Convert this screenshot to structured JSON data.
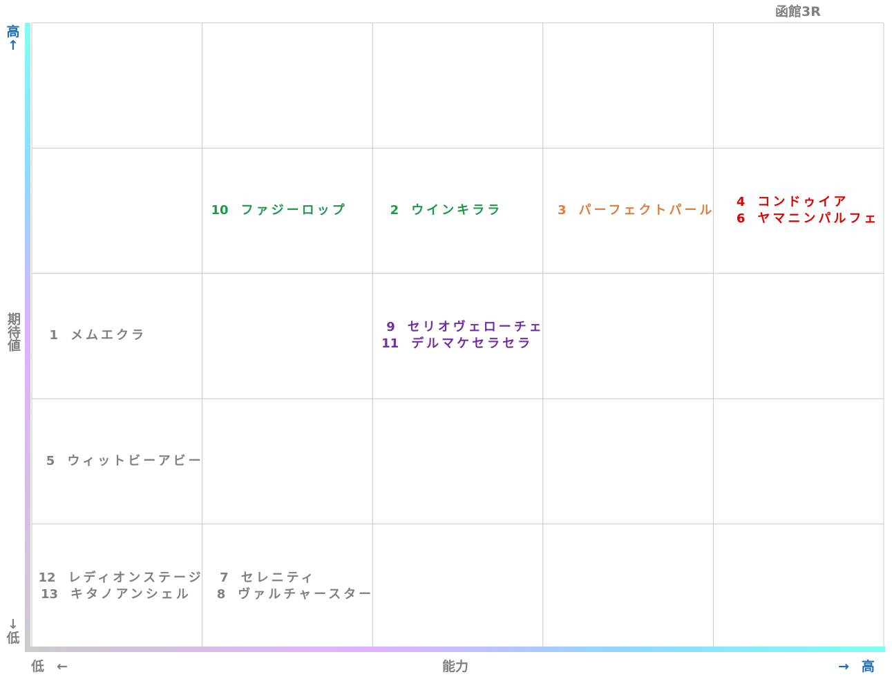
{
  "title": "函館3R",
  "y_axis": {
    "high": "高",
    "high_arrow": "↑",
    "label": "期待値",
    "low_arrow": "↓",
    "low": "低"
  },
  "x_axis": {
    "low": "低",
    "low_arrow": "←",
    "label": "能力",
    "high_arrow": "→",
    "high": "高"
  },
  "grid": [
    [
      [],
      [],
      [],
      [],
      []
    ],
    [
      [],
      [
        {
          "number": 10,
          "name": "ファジーロップ",
          "color": "#1a9a48"
        }
      ],
      [
        {
          "number": 2,
          "name": "ウインキララ",
          "color": "#1a9a48"
        }
      ],
      [
        {
          "number": 3,
          "name": "パーフェクトパール",
          "color": "#e07b39"
        }
      ],
      [
        {
          "number": 4,
          "name": "コンドゥイア",
          "color": "#e00000"
        },
        {
          "number": 6,
          "name": "ヤマニンパルフェ",
          "color": "#e00000"
        }
      ]
    ],
    [
      [
        {
          "number": 1,
          "name": "メムエクラ",
          "color": "#808080"
        }
      ],
      [],
      [
        {
          "number": 9,
          "name": "セリオヴェローチェ",
          "color": "#7030a0"
        },
        {
          "number": 11,
          "name": "デルマケセラセラ",
          "color": "#7030a0"
        }
      ],
      [],
      []
    ],
    [
      [
        {
          "number": 5,
          "name": "ウィットビーアビー",
          "color": "#808080"
        }
      ],
      [],
      [],
      [],
      []
    ],
    [
      [
        {
          "number": 12,
          "name": "レディオンステージ",
          "color": "#808080"
        },
        {
          "number": 13,
          "name": "キタノアンシェル",
          "color": "#808080"
        }
      ],
      [
        {
          "number": 7,
          "name": "セレニティ",
          "color": "#808080"
        },
        {
          "number": 8,
          "name": "ヴァルチャースター",
          "color": "#808080"
        }
      ],
      [],
      [],
      []
    ]
  ]
}
